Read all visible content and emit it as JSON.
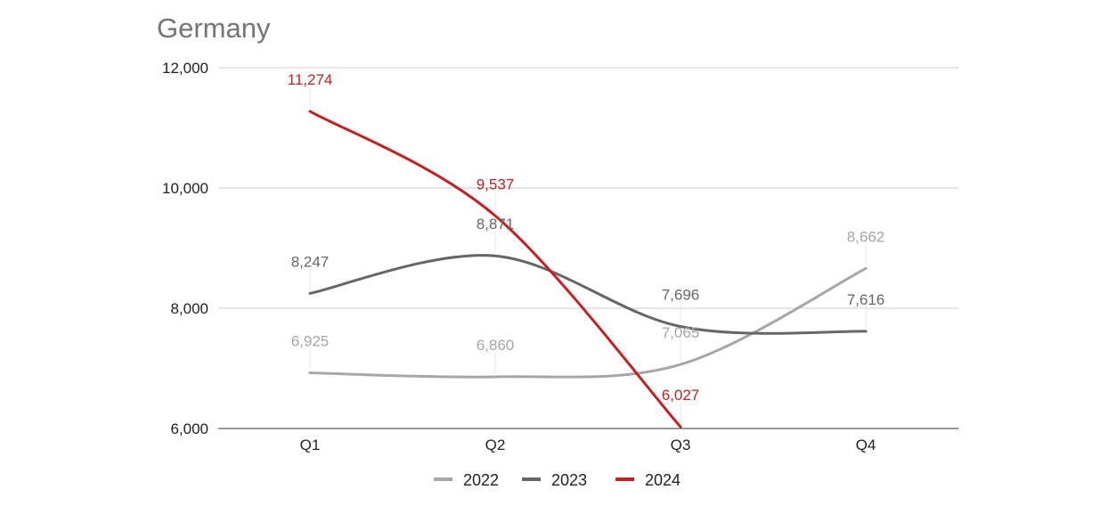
{
  "chart_data": {
    "type": "line",
    "title": "Germany",
    "xlabel": "",
    "ylabel": "",
    "categories": [
      "Q1",
      "Q2",
      "Q3",
      "Q4"
    ],
    "ylim": [
      6000,
      12000
    ],
    "yticks": [
      6000,
      8000,
      10000,
      12000
    ],
    "ytick_labels": [
      "6,000",
      "8,000",
      "10,000",
      "12,000"
    ],
    "grid": true,
    "legend_position": "bottom",
    "series": [
      {
        "name": "2022",
        "color": "#a6a6a6",
        "values": [
          6925,
          6860,
          7065,
          8662
        ],
        "labels": [
          "6,925",
          "6,860",
          "7,065",
          "8,662"
        ]
      },
      {
        "name": "2023",
        "color": "#666666",
        "values": [
          8247,
          8871,
          7696,
          7616
        ],
        "labels": [
          "8,247",
          "8,871",
          "7,696",
          "7,616"
        ]
      },
      {
        "name": "2024",
        "color": "#c5201f",
        "values": [
          11274,
          9537,
          6027,
          null
        ],
        "labels": [
          "11,274",
          "9,537",
          "6,027",
          null
        ]
      }
    ]
  }
}
